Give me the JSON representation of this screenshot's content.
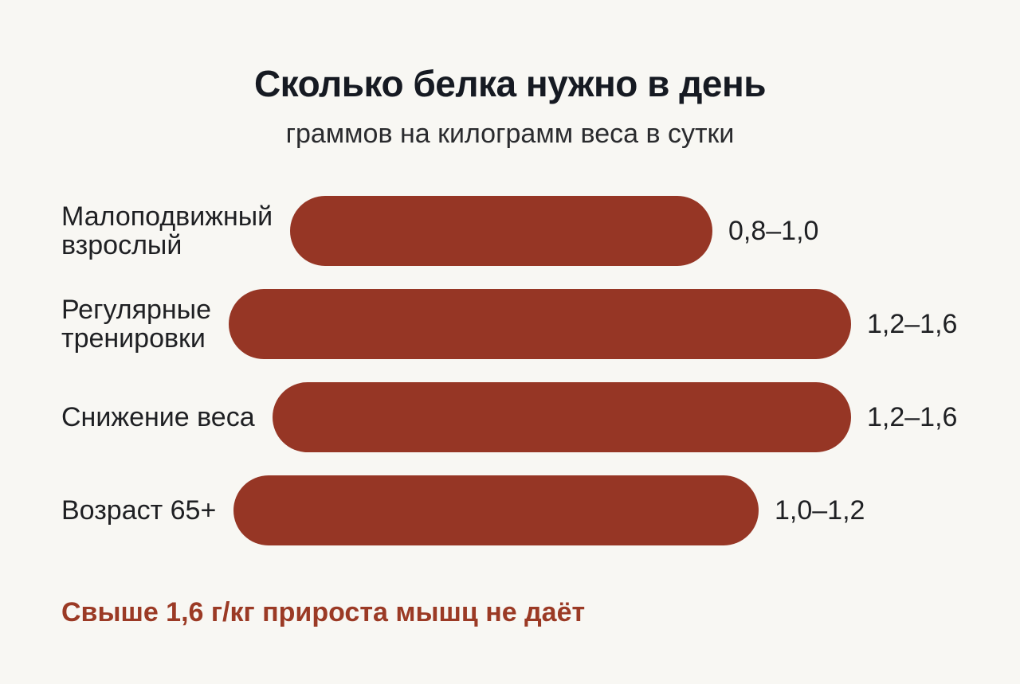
{
  "title": "Сколько белка нужно в день",
  "subtitle": "граммов на килограмм веса в сутки",
  "note": "Свыше 1,6 г/кг прироста мышц не даёт",
  "colors": {
    "bar": "#963625",
    "note": "#9b3a25",
    "background": "#f8f7f3"
  },
  "chart_data": {
    "type": "bar",
    "orientation": "horizontal",
    "categories": [
      "Малоподвижный взрослый",
      "Регулярные тренировки",
      "Снижение веса",
      "Возраст 65+"
    ],
    "ranges": [
      [
        0.8,
        1.0
      ],
      [
        1.2,
        1.6
      ],
      [
        1.2,
        1.6
      ],
      [
        1.0,
        1.2
      ]
    ],
    "values": [
      1.0,
      1.6,
      1.6,
      1.2
    ],
    "value_labels": [
      "0,8–1,0",
      "1,2–1,6",
      "1,2–1,6",
      "1,0–1,2"
    ],
    "title": "Сколько белка нужно в день",
    "subtitle": "граммов на килограмм веса в сутки",
    "xlabel": "",
    "ylabel": "",
    "grid": false,
    "legend": "none"
  }
}
